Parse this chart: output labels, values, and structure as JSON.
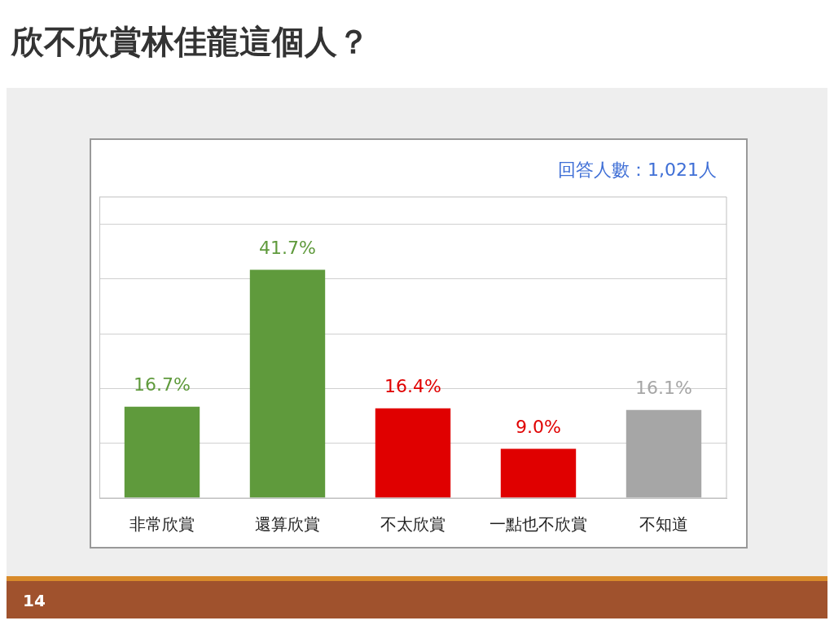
{
  "chart_data": {
    "type": "bar",
    "title": "欣不欣賞林佳龍這個人？",
    "categories": [
      "非常欣賞",
      "還算欣賞",
      "不太欣賞",
      "一點也不欣賞",
      "不知道"
    ],
    "values": [
      16.7,
      41.7,
      16.4,
      9.0,
      16.1
    ],
    "colors": [
      "#5f9a3c",
      "#5f9a3c",
      "#e00000",
      "#e00000",
      "#a6a6a6"
    ],
    "value_labels": [
      "16.7%",
      "41.7%",
      "16.4%",
      "9.0%",
      "16.1%"
    ],
    "ylim": [
      0,
      55
    ],
    "yticks": [
      {
        "value": 0,
        "label": null
      },
      {
        "value": 10,
        "label": null
      },
      {
        "value": 20,
        "label": null
      },
      {
        "value": 30,
        "label": null
      },
      {
        "value": 40,
        "label": null
      },
      {
        "value": 50,
        "label": null
      }
    ],
    "grid": "y",
    "legend": false,
    "tick_labels": "x",
    "annotations": [
      "回答人數：1,021人",
      "14"
    ]
  }
}
